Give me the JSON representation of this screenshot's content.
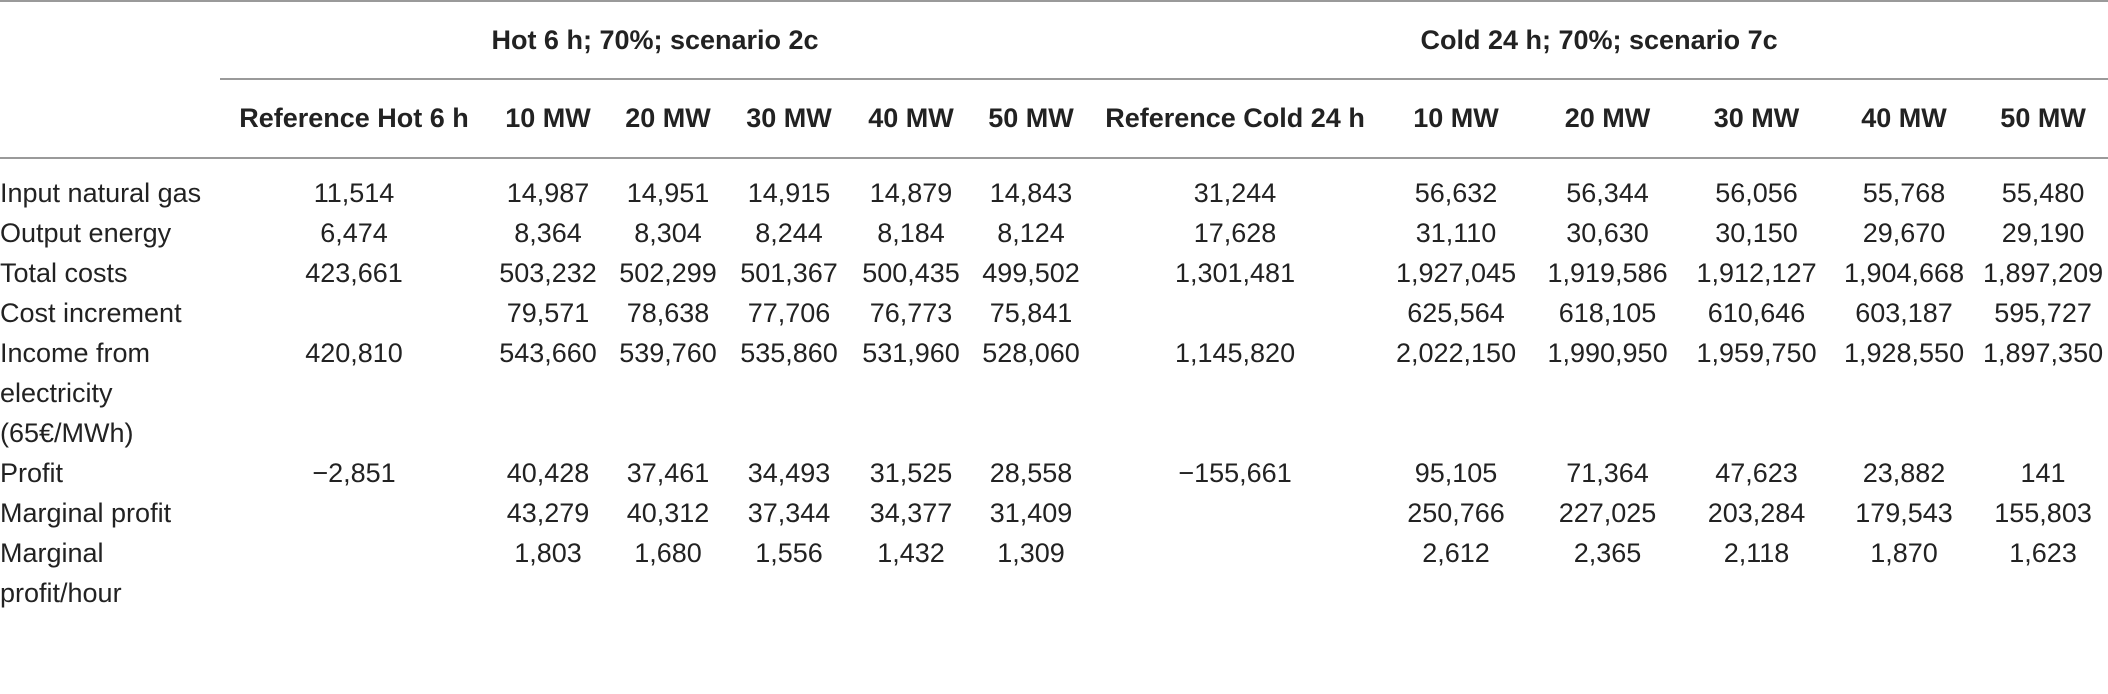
{
  "table": {
    "groups": [
      {
        "label": "Hot 6 h; 70%; scenario 2c"
      },
      {
        "label": "Cold 24 h; 70%; scenario 7c"
      }
    ],
    "columns": [
      "Reference Hot 6 h",
      "10 MW",
      "20 MW",
      "30 MW",
      "40 MW",
      "50 MW",
      "Reference Cold 24 h",
      "10 MW",
      "20 MW",
      "30 MW",
      "40 MW",
      "50 MW"
    ],
    "rows": [
      {
        "label": "Input natural gas",
        "values": [
          "11,514",
          "14,987",
          "14,951",
          "14,915",
          "14,879",
          "14,843",
          "31,244",
          "56,632",
          "56,344",
          "56,056",
          "55,768",
          "55,480"
        ]
      },
      {
        "label": "Output energy",
        "values": [
          "6,474",
          "8,364",
          "8,304",
          "8,244",
          "8,184",
          "8,124",
          "17,628",
          "31,110",
          "30,630",
          "30,150",
          "29,670",
          "29,190"
        ]
      },
      {
        "label": "Total costs",
        "values": [
          "423,661",
          "503,232",
          "502,299",
          "501,367",
          "500,435",
          "499,502",
          "1,301,481",
          "1,927,045",
          "1,919,586",
          "1,912,127",
          "1,904,668",
          "1,897,209"
        ]
      },
      {
        "label": "Cost increment",
        "values": [
          "",
          "79,571",
          "78,638",
          "77,706",
          "76,773",
          "75,841",
          "",
          "625,564",
          "618,105",
          "610,646",
          "603,187",
          "595,727"
        ]
      },
      {
        "label": "Income from electricity (65€/MWh)",
        "values": [
          "420,810",
          "543,660",
          "539,760",
          "535,860",
          "531,960",
          "528,060",
          "1,145,820",
          "2,022,150",
          "1,990,950",
          "1,959,750",
          "1,928,550",
          "1,897,350"
        ]
      },
      {
        "label": "Profit",
        "values": [
          "−2,851",
          "40,428",
          "37,461",
          "34,493",
          "31,525",
          "28,558",
          "−155,661",
          "95,105",
          "71,364",
          "47,623",
          "23,882",
          "141"
        ]
      },
      {
        "label": "Marginal profit",
        "values": [
          "",
          "43,279",
          "40,312",
          "37,344",
          "34,377",
          "31,409",
          "",
          "250,766",
          "227,025",
          "203,284",
          "179,543",
          "155,803"
        ]
      },
      {
        "label": "Marginal profit/hour",
        "values": [
          "",
          "1,803",
          "1,680",
          "1,556",
          "1,432",
          "1,309",
          "",
          "2,612",
          "2,365",
          "2,118",
          "1,870",
          "1,623"
        ]
      }
    ]
  }
}
